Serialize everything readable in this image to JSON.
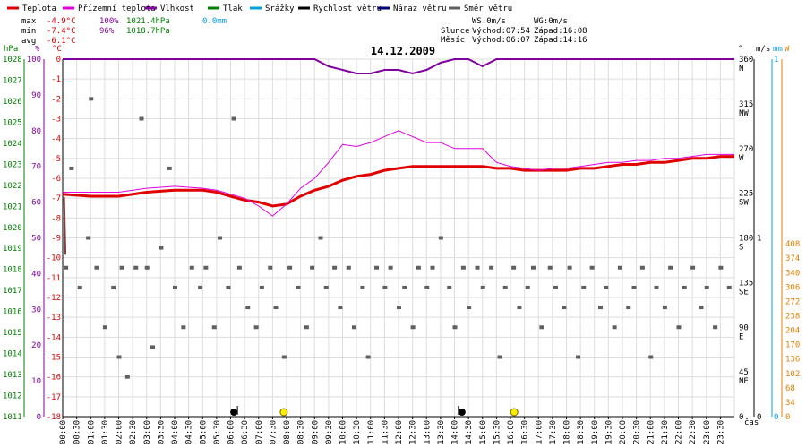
{
  "legend": [
    {
      "label": "Teplota",
      "color": "#e00000"
    },
    {
      "label": "Přízemní teplota",
      "color": "#e000e0"
    },
    {
      "label": "Vlhkost",
      "color": "#8000a0"
    },
    {
      "label": "Tlak",
      "color": "#008000"
    },
    {
      "label": "Srážky",
      "color": "#00a0e0"
    },
    {
      "label": "Rychlost větru",
      "color": "#000000"
    },
    {
      "label": "Náraz větru",
      "color": "#000080"
    },
    {
      "label": "Směr větru",
      "color": "#606060"
    }
  ],
  "stats": {
    "max_label": "max",
    "max_temp": "-4.9°C",
    "max_hum": "100%",
    "max_press": "1021.4hPa",
    "rain": "0.0mm",
    "min_label": "min",
    "min_temp": "-7.4°C",
    "min_hum": "96%",
    "min_press": "1018.7hPa",
    "avg_label": "avg",
    "avg_temp": "-6.1°C"
  },
  "info": {
    "ws": "WS:0m/s",
    "wg": "WG:0m/s",
    "sun_label": "Slunce",
    "sun_rise": "Východ:07:54",
    "sun_set": "Západ:16:08",
    "moon_label": "Měsíc",
    "moon_rise": "Východ:06:07",
    "moon_set": "Západ:14:16"
  },
  "colors": {
    "temperature": "#e00000",
    "ground_temp": "#e000e0",
    "humidity": "#8000a0",
    "pressure": "#008000",
    "rain": "#00a0e0",
    "wind_speed": "#000000",
    "gust": "#000080",
    "wind_dir": "#606060",
    "solar": "#e08000",
    "grid": "#dddddd"
  },
  "chart_data": {
    "type": "line",
    "title": "14.12.2009",
    "xlabel": "čas",
    "x_ticks": [
      "00:00",
      "00:30",
      "01:00",
      "01:30",
      "02:00",
      "02:30",
      "03:00",
      "03:30",
      "04:00",
      "04:30",
      "05:00",
      "05:30",
      "06:00",
      "06:30",
      "07:00",
      "07:30",
      "08:00",
      "08:30",
      "09:00",
      "09:30",
      "10:00",
      "10:30",
      "11:00",
      "11:30",
      "12:00",
      "12:30",
      "13:00",
      "13:30",
      "14:00",
      "14:30",
      "15:00",
      "15:30",
      "16:00",
      "16:30",
      "17:00",
      "17:30",
      "18:00",
      "18:30",
      "19:00",
      "19:30",
      "20:00",
      "20:30",
      "21:00",
      "21:30",
      "22:00",
      "22:30",
      "23:00",
      "23:30"
    ],
    "axes": {
      "pressure": {
        "unit": "hPa",
        "ticks": [
          "1028",
          "1027",
          "1026",
          "1025",
          "1024",
          "1023",
          "1022",
          "1021",
          "1020",
          "1019",
          "1018",
          "1017",
          "1016",
          "1015",
          "1014",
          "1013",
          "1012",
          "1011"
        ]
      },
      "humidity": {
        "unit": "%",
        "ticks": [
          "100",
          "90",
          "80",
          "70",
          "60",
          "50",
          "40",
          "30",
          "20",
          "10",
          "0"
        ]
      },
      "temperature": {
        "unit": "°C",
        "range": [
          -18,
          0
        ],
        "ticks": [
          "0",
          "-1",
          "-2",
          "-3",
          "-4",
          "-5",
          "-6",
          "-7",
          "-8",
          "-9",
          "-10",
          "-11",
          "-12",
          "-13",
          "-14",
          "-15",
          "-16",
          "-17",
          "-18"
        ]
      },
      "direction": {
        "unit": "°",
        "ticks": [
          "360",
          "315",
          "270",
          "225",
          "180",
          "135",
          "90",
          "45",
          "0"
        ],
        "compass": [
          "N",
          "NW",
          "W",
          "SW",
          "S",
          "SE",
          "E",
          "NE"
        ]
      },
      "wind": {
        "unit": "m/s",
        "ticks": [
          "1",
          "0"
        ]
      },
      "rain": {
        "unit": "mm",
        "ticks": [
          "1",
          "0"
        ]
      },
      "solar": {
        "unit": "W",
        "ticks": [
          "408",
          "374",
          "340",
          "306",
          "272",
          "238",
          "204",
          "170",
          "136",
          "102",
          "68",
          "34",
          "0"
        ]
      }
    },
    "series": [
      {
        "name": "Teplota",
        "x": [
          0,
          1,
          2,
          3,
          4,
          5,
          5.5,
          6,
          6.5,
          7,
          7.5,
          8,
          8.5,
          9,
          9.5,
          10,
          10.5,
          11,
          11.5,
          12,
          12.5,
          13,
          13.5,
          14,
          14.5,
          15,
          15.5,
          16,
          16.5,
          17,
          17.5,
          18,
          18.5,
          19,
          19.5,
          20,
          20.5,
          21,
          21.5,
          22,
          22.5,
          23,
          23.5,
          24
        ],
        "values": [
          -6.8,
          -6.9,
          -6.9,
          -6.7,
          -6.6,
          -6.6,
          -6.7,
          -6.9,
          -7.1,
          -7.2,
          -7.4,
          -7.3,
          -6.9,
          -6.6,
          -6.4,
          -6.1,
          -5.9,
          -5.8,
          -5.6,
          -5.5,
          -5.4,
          -5.4,
          -5.4,
          -5.4,
          -5.4,
          -5.4,
          -5.5,
          -5.5,
          -5.6,
          -5.6,
          -5.6,
          -5.6,
          -5.5,
          -5.5,
          -5.4,
          -5.3,
          -5.3,
          -5.2,
          -5.2,
          -5.1,
          -5.0,
          -5.0,
          -4.9,
          -4.9
        ]
      },
      {
        "name": "Přízemní teplota",
        "x": [
          0,
          1,
          2,
          3,
          4,
          5,
          5.5,
          6,
          6.5,
          7,
          7.5,
          8,
          8.5,
          9,
          9.5,
          10,
          10.5,
          11,
          11.5,
          12,
          12.5,
          13,
          13.5,
          14,
          14.5,
          15,
          15.5,
          16,
          16.5,
          17,
          17.5,
          18,
          18.5,
          19,
          19.5,
          20,
          20.5,
          21,
          21.5,
          22,
          22.5,
          23,
          23.5,
          24
        ],
        "values": [
          -6.7,
          -6.7,
          -6.7,
          -6.5,
          -6.4,
          -6.5,
          -6.6,
          -6.8,
          -7.0,
          -7.4,
          -7.9,
          -7.3,
          -6.5,
          -6.0,
          -5.2,
          -4.3,
          -4.4,
          -4.2,
          -3.9,
          -3.6,
          -3.9,
          -4.2,
          -4.2,
          -4.5,
          -4.5,
          -4.5,
          -5.2,
          -5.4,
          -5.5,
          -5.6,
          -5.5,
          -5.5,
          -5.4,
          -5.3,
          -5.2,
          -5.2,
          -5.1,
          -5.1,
          -5.0,
          -5.0,
          -4.9,
          -4.8,
          -4.8,
          -4.8
        ]
      },
      {
        "name": "Vlhkost",
        "x": [
          0,
          8,
          9,
          9.5,
          10,
          10.5,
          11,
          11.5,
          12,
          12.5,
          13,
          13.5,
          14,
          14.5,
          15,
          15.5,
          16,
          24
        ],
        "values": [
          100,
          100,
          100,
          98,
          97,
          96,
          96,
          97,
          97,
          96,
          97,
          99,
          100,
          100,
          98,
          100,
          100,
          100
        ]
      },
      {
        "name": "Tlak",
        "x": [
          0,
          0.05,
          0.1
        ],
        "values": [
          1021.4,
          1021.4,
          1018.7
        ]
      },
      {
        "name": "Směr větru",
        "x": [
          0.1,
          0.3,
          0.6,
          0.9,
          1.0,
          1.2,
          1.5,
          1.8,
          2.0,
          2.1,
          2.3,
          2.6,
          2.8,
          3.0,
          3.2,
          3.5,
          3.8,
          4.0,
          4.3,
          4.6,
          4.9,
          5.1,
          5.4,
          5.6,
          5.9,
          6.1,
          6.3,
          6.6,
          6.9,
          7.1,
          7.4,
          7.6,
          7.9,
          8.1,
          8.4,
          8.7,
          8.9,
          9.2,
          9.4,
          9.7,
          9.9,
          10.2,
          10.4,
          10.7,
          10.9,
          11.2,
          11.5,
          11.7,
          12.0,
          12.2,
          12.5,
          12.7,
          13.0,
          13.2,
          13.5,
          13.8,
          14.0,
          14.3,
          14.5,
          14.8,
          15.0,
          15.3,
          15.6,
          15.8,
          16.1,
          16.3,
          16.6,
          16.8,
          17.1,
          17.4,
          17.6,
          17.9,
          18.1,
          18.4,
          18.6,
          18.9,
          19.2,
          19.4,
          19.7,
          19.9,
          20.2,
          20.4,
          20.7,
          21.0,
          21.2,
          21.5,
          21.7,
          22.0,
          22.2,
          22.5,
          22.8,
          23.0,
          23.3,
          23.5,
          23.8
        ],
        "values": [
          150,
          250,
          130,
          180,
          320,
          150,
          90,
          130,
          60,
          150,
          40,
          150,
          300,
          150,
          70,
          170,
          250,
          130,
          90,
          150,
          130,
          150,
          90,
          180,
          130,
          300,
          150,
          110,
          90,
          130,
          150,
          110,
          60,
          150,
          130,
          90,
          150,
          180,
          130,
          150,
          110,
          150,
          90,
          130,
          60,
          150,
          130,
          150,
          110,
          130,
          90,
          150,
          130,
          150,
          180,
          130,
          90,
          150,
          110,
          150,
          130,
          150,
          60,
          130,
          150,
          110,
          130,
          150,
          90,
          150,
          130,
          110,
          150,
          60,
          130,
          150,
          110,
          130,
          90,
          150,
          110,
          130,
          150,
          60,
          130,
          110,
          150,
          90,
          130,
          150,
          110,
          130,
          90,
          150,
          130
        ]
      }
    ]
  }
}
